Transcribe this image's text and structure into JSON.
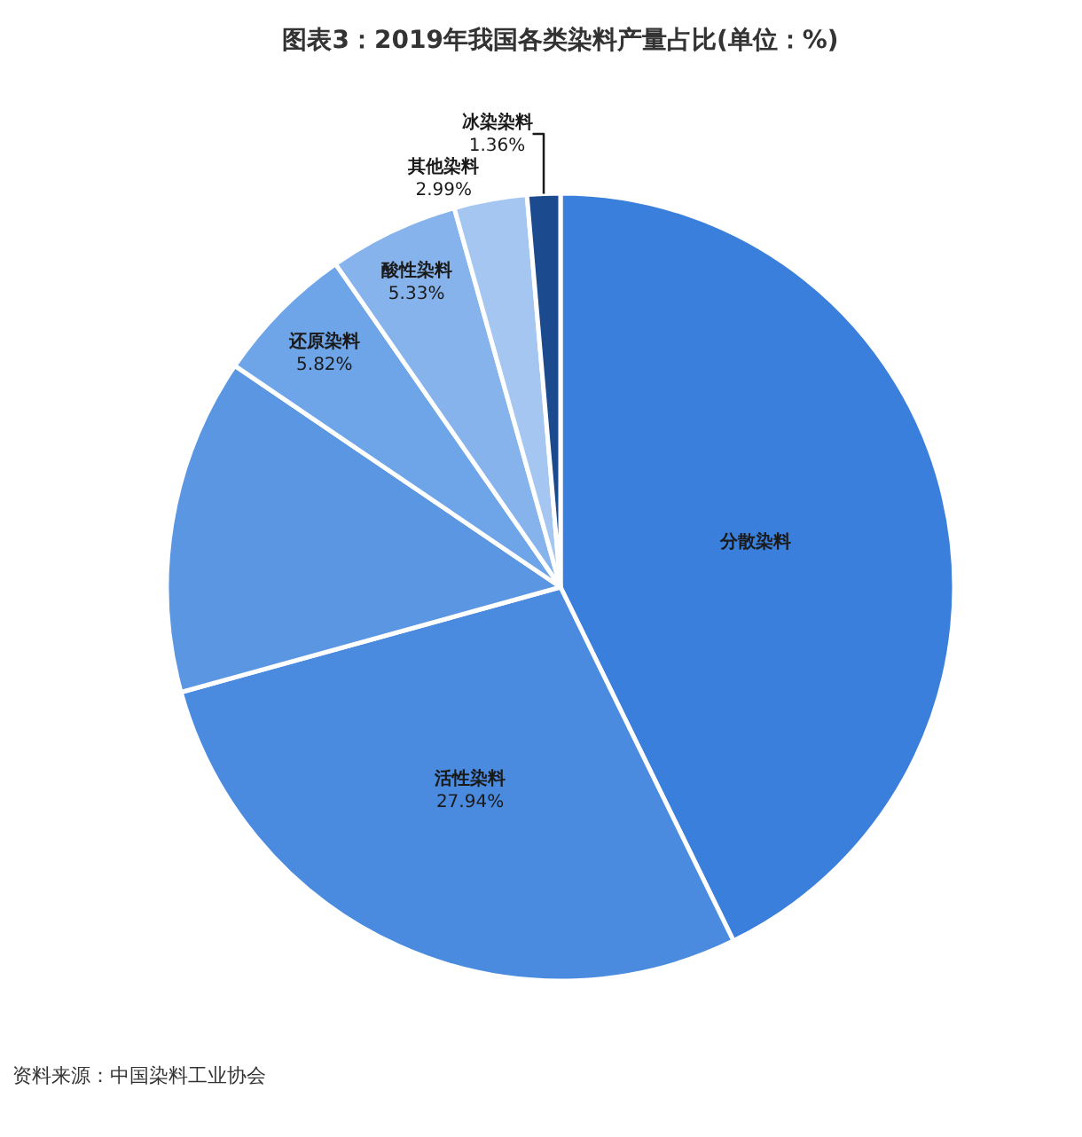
{
  "chart_data": {
    "type": "pie",
    "title": "图表3：2019年我国各类染料产量占比(单位：%)",
    "categories": [
      "分散染料",
      "活性染料",
      null,
      "还原染料",
      "酸性染料",
      "其他染料",
      "冰染染料"
    ],
    "values": [
      42.76,
      27.94,
      13.8,
      5.82,
      5.33,
      2.99,
      1.36
    ],
    "value_labels": [
      null,
      "27.94%",
      null,
      "5.82%",
      "5.33%",
      "2.99%",
      "1.36%"
    ],
    "colors": [
      "#3a7fdc",
      "#4a8be0",
      "#5b96e3",
      "#6ea4e8",
      "#86b3ec",
      "#a5c6f1",
      "#1c4a8e"
    ],
    "annotations": [
      "资料来源：中国染料工业协会"
    ],
    "legend": false
  }
}
